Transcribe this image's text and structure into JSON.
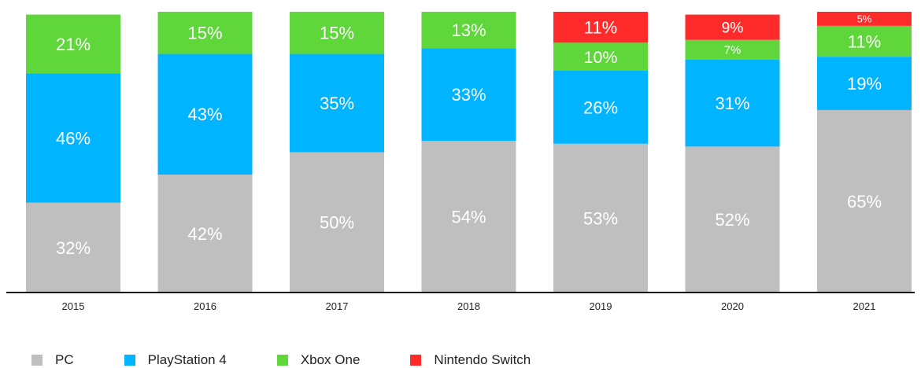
{
  "chart_data": {
    "type": "bar",
    "stacked": true,
    "categories": [
      "2015",
      "2016",
      "2017",
      "2018",
      "2019",
      "2020",
      "2021"
    ],
    "series": [
      {
        "name": "PC",
        "color": "#bfbfbf",
        "values": [
          32,
          42,
          50,
          54,
          53,
          52,
          65
        ],
        "labels": [
          "32%",
          "42%",
          "50%",
          "54%",
          "53%",
          "52%",
          "65%"
        ]
      },
      {
        "name": "PlayStation 4",
        "color": "#00b4ff",
        "values": [
          46,
          43,
          35,
          33,
          26,
          31,
          19
        ],
        "labels": [
          "46%",
          "43%",
          "35%",
          "33%",
          "26%",
          "31%",
          "19%"
        ]
      },
      {
        "name": "Xbox One",
        "color": "#5fd63a",
        "values": [
          21,
          15,
          15,
          13,
          10,
          7,
          11
        ],
        "labels": [
          "21%",
          "15%",
          "15%",
          "13%",
          "10%",
          "7%",
          "11%"
        ]
      },
      {
        "name": "Nintendo Switch",
        "color": "#ff2a2a",
        "values": [
          null,
          null,
          null,
          null,
          11,
          9,
          5
        ],
        "labels": [
          null,
          null,
          null,
          null,
          "11%",
          "9%",
          "5%"
        ]
      }
    ],
    "title": "",
    "xlabel": "",
    "ylabel": "",
    "ylim": [
      0,
      100
    ],
    "grid": false,
    "legend": "bottom"
  }
}
